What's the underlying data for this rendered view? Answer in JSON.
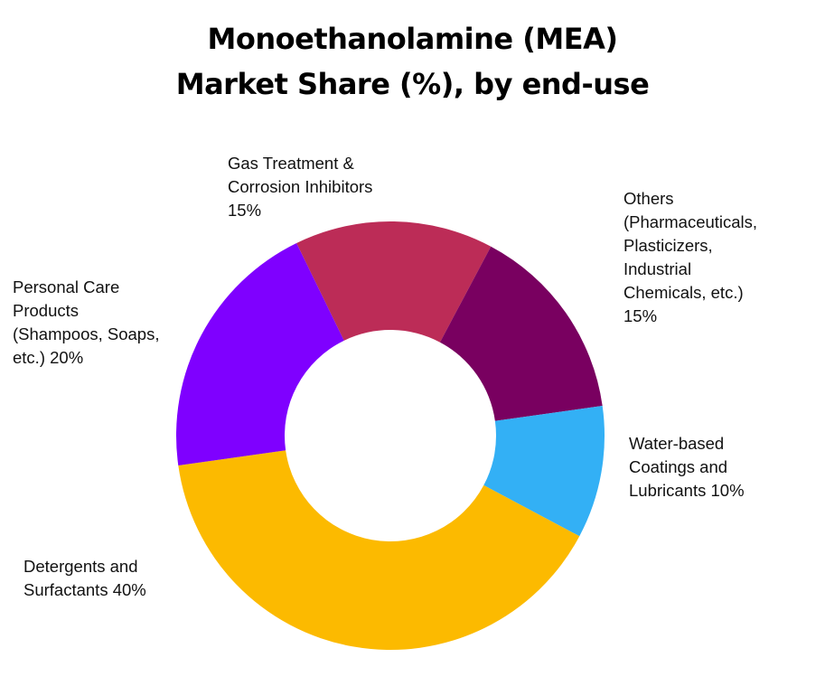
{
  "title": {
    "line1": "Monoethanolamine (MEA)",
    "line2": "Market Share (%), by end-use"
  },
  "chart_data": {
    "type": "pie",
    "variant": "donut",
    "title": "Monoethanolamine (MEA) Market Share (%), by end-use",
    "unit": "%",
    "start_angle_deg": 334,
    "segments": [
      {
        "key": "gas",
        "label": "Gas Treatment & Corrosion Inhibitors",
        "value": 15,
        "color": "#BC2C57"
      },
      {
        "key": "others",
        "label": "Others (Pharmaceuticals, Plasticizers, Industrial Chemicals, etc.)",
        "value": 15,
        "color": "#790060"
      },
      {
        "key": "water",
        "label": "Water-based Coatings and Lubricants",
        "value": 10,
        "color": "#33B0F5"
      },
      {
        "key": "detergents",
        "label": "Detergents and Surfactants",
        "value": 40,
        "color": "#FCBA00"
      },
      {
        "key": "personal",
        "label": "Personal Care Products (Shampoos, Soaps, etc.)",
        "value": 20,
        "color": "#7F00FF"
      }
    ],
    "legend_position": "labels-outside"
  },
  "labels": {
    "gas": "Gas Treatment &\nCorrosion Inhibitors\n15%",
    "others": "Others\n(Pharmaceuticals,\nPlasticizers,\nIndustrial\nChemicals, etc.)\n15%",
    "water": "Water-based\nCoatings and\nLubricants 10%",
    "detergents": "Detergents and\nSurfactants 40%",
    "personal": "Personal Care\nProducts\n(Shampoos, Soaps,\netc.) 20%"
  }
}
